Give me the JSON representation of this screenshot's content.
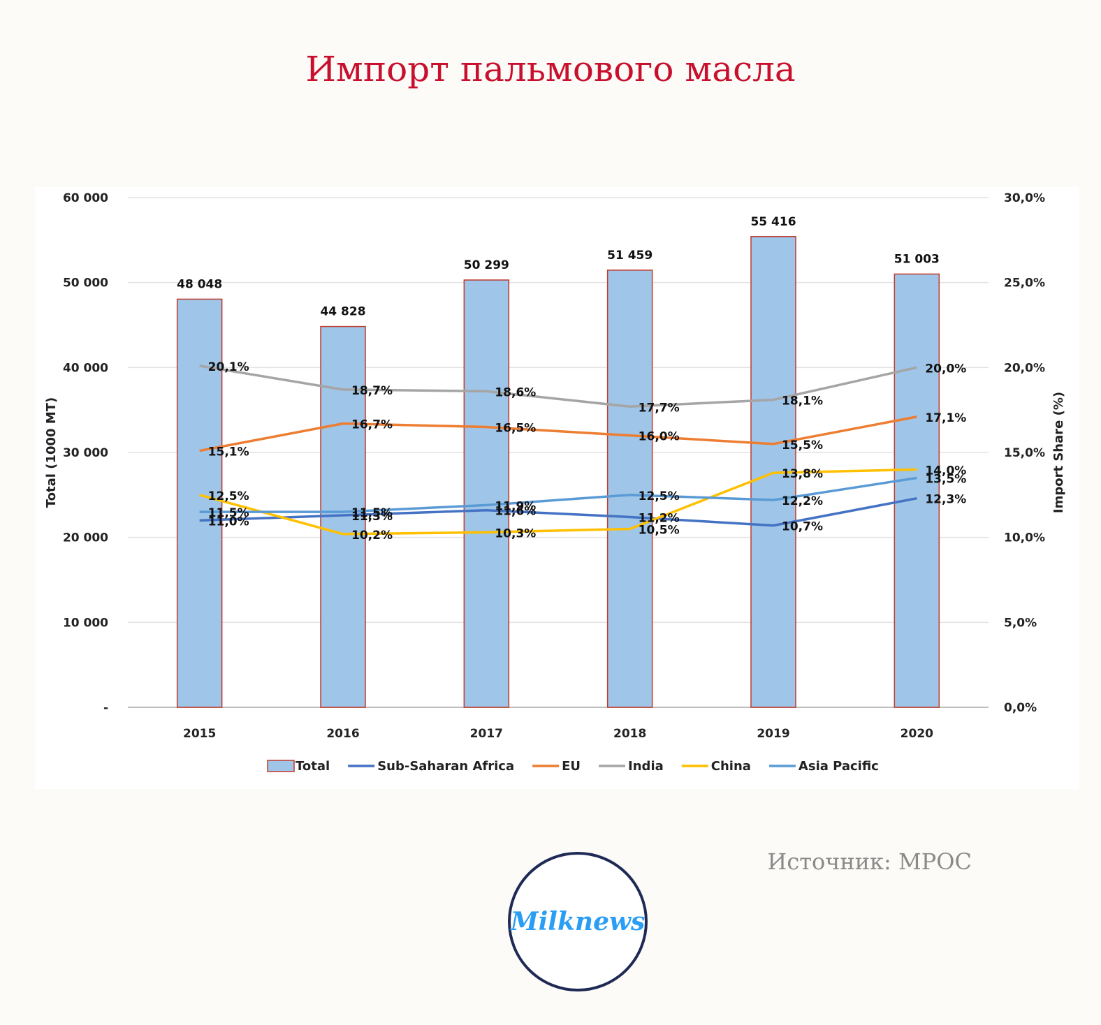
{
  "page": {
    "title": "Импорт пальмового масла",
    "source": "Источник: MPOC",
    "logo_text": "Milknews"
  },
  "chart_data": {
    "type": "bar",
    "categories": [
      "2015",
      "2016",
      "2017",
      "2018",
      "2019",
      "2020"
    ],
    "y_left": {
      "label": "Total (1000 MT)",
      "range": [
        0,
        60000
      ],
      "ticks": [
        "-",
        "10 000",
        "20 000",
        "30 000",
        "40 000",
        "50 000",
        "60 000"
      ]
    },
    "y_right": {
      "label": "Import Share (%)",
      "range": [
        0,
        30
      ],
      "ticks": [
        "0,0%",
        "5,0%",
        "10,0%",
        "15,0%",
        "20,0%",
        "25,0%",
        "30,0%"
      ]
    },
    "bars": {
      "name": "Total",
      "values": [
        48048,
        44828,
        50299,
        51459,
        55416,
        51003
      ],
      "labels": [
        "48 048",
        "44 828",
        "50 299",
        "51 459",
        "55 416",
        "51 003"
      ],
      "fill": "#9fc5e8",
      "stroke": "#c0392b"
    },
    "series": [
      {
        "name": "Sub-Saharan Africa",
        "color": "#4472c4",
        "values": [
          11.0,
          11.3,
          11.6,
          11.2,
          10.7,
          12.3
        ],
        "labels": [
          "11,0%",
          "11,3%",
          "11,6%",
          "11,2%",
          "10,7%",
          "12,3%"
        ]
      },
      {
        "name": "EU",
        "color": "#ed7d31",
        "values": [
          15.1,
          16.7,
          16.5,
          16.0,
          15.5,
          17.1
        ],
        "labels": [
          "15,1%",
          "16,7%",
          "16,5%",
          "16,0%",
          "15,5%",
          "17,1%"
        ]
      },
      {
        "name": "India",
        "color": "#a5a5a5",
        "values": [
          20.1,
          18.7,
          18.6,
          17.7,
          18.1,
          20.0
        ],
        "labels": [
          "20,1%",
          "18,7%",
          "18,6%",
          "17,7%",
          "18,1%",
          "20,0%"
        ]
      },
      {
        "name": "China",
        "color": "#ffc000",
        "values": [
          12.5,
          10.2,
          10.3,
          10.5,
          13.8,
          14.0
        ],
        "labels": [
          "12,5%",
          "10,2%",
          "10,3%",
          "10,5%",
          "13,8%",
          "14,0%"
        ]
      },
      {
        "name": "Asia Pacific",
        "color": "#5b9bd5",
        "values": [
          11.5,
          11.5,
          11.9,
          12.5,
          12.2,
          13.5
        ],
        "labels": [
          "11,5%",
          "11,5%",
          "11,9%",
          "12,5%",
          "12,2%",
          "13,5%"
        ]
      }
    ],
    "grid": true,
    "legend": "bottom"
  }
}
